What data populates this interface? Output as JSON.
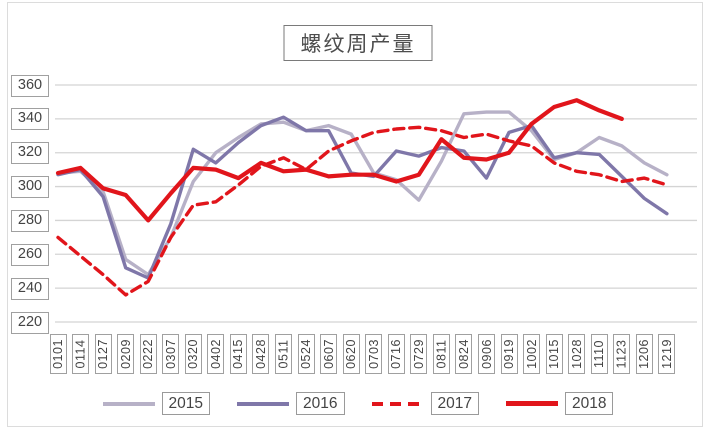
{
  "title": "螺纹周产量",
  "chart_data": {
    "type": "line",
    "title": "螺纹周产量",
    "xlabel": "",
    "ylabel": "",
    "ylim": [
      220,
      360
    ],
    "y_ticks": [
      360,
      340,
      320,
      300,
      280,
      260,
      240,
      220
    ],
    "grid": "horizontal",
    "legend_position": "bottom",
    "categories": [
      "0101",
      "0114",
      "0127",
      "0209",
      "0222",
      "0307",
      "0320",
      "0402",
      "0415",
      "0428",
      "0511",
      "0524",
      "0607",
      "0620",
      "0703",
      "0716",
      "0729",
      "0811",
      "0824",
      "0906",
      "0919",
      "1002",
      "1015",
      "1028",
      "1110",
      "1123",
      "1206",
      "1219"
    ],
    "series": [
      {
        "name": "2015",
        "color": "#b7b1c7",
        "style": "solid",
        "values": [
          308,
          309,
          297,
          257,
          248,
          270,
          303,
          320,
          329,
          337,
          338,
          333,
          336,
          331,
          308,
          304,
          292,
          315,
          343,
          344,
          344,
          333,
          316,
          320,
          329,
          324,
          314,
          307
        ]
      },
      {
        "name": "2016",
        "color": "#7f77a9",
        "style": "solid",
        "values": [
          307,
          310,
          294,
          252,
          246,
          278,
          322,
          314,
          326,
          336,
          341,
          333,
          333,
          308,
          306,
          321,
          318,
          323,
          321,
          305,
          332,
          336,
          317,
          320,
          319,
          306,
          293,
          284
        ]
      },
      {
        "name": "2017",
        "color": "#e1151b",
        "style": "dashed",
        "values": [
          270,
          259,
          248,
          236,
          244,
          270,
          289,
          291,
          301,
          312,
          317,
          310,
          321,
          327,
          332,
          334,
          335,
          333,
          329,
          331,
          327,
          324,
          314,
          309,
          307,
          303,
          305,
          301
        ]
      },
      {
        "name": "2018",
        "color": "#e1151b",
        "style": "solid",
        "values": [
          308,
          311,
          299,
          295,
          280,
          296,
          311,
          310,
          305,
          314,
          309,
          310,
          306,
          307,
          307,
          303,
          307,
          328,
          317,
          316,
          320,
          337,
          347,
          351,
          345,
          340,
          null,
          null
        ]
      }
    ]
  }
}
